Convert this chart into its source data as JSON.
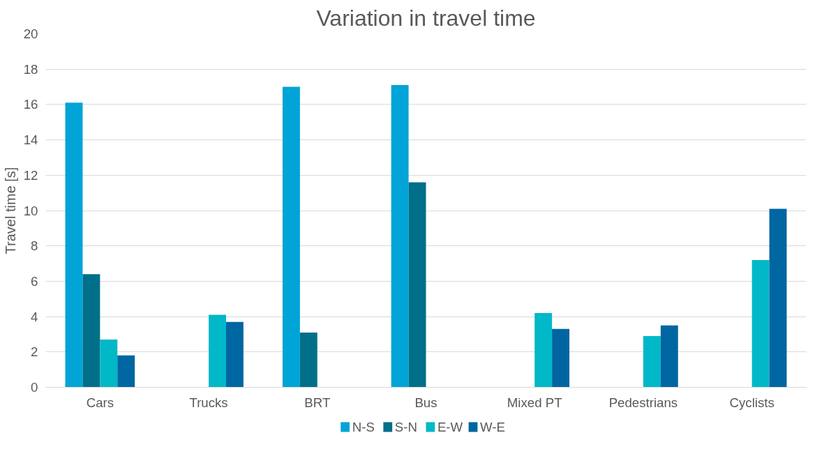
{
  "chart_data": {
    "type": "bar",
    "title": "Variation in travel time",
    "ylabel": "Travel time [s]",
    "categories": [
      "Cars",
      "Trucks",
      "BRT",
      "Bus",
      "Mixed PT",
      "Pedestrians",
      "Cyclists"
    ],
    "series": [
      {
        "name": "N-S",
        "color": "#00a4d6",
        "values": [
          16.1,
          null,
          17.0,
          17.1,
          null,
          null,
          null
        ]
      },
      {
        "name": "S-N",
        "color": "#006f89",
        "values": [
          6.4,
          null,
          3.1,
          11.6,
          null,
          null,
          null
        ]
      },
      {
        "name": "E-W",
        "color": "#00b8c8",
        "values": [
          2.7,
          4.1,
          null,
          null,
          4.2,
          2.9,
          7.2
        ]
      },
      {
        "name": "W-E",
        "color": "#0066a1",
        "values": [
          1.8,
          3.7,
          null,
          null,
          3.3,
          3.5,
          10.1
        ]
      }
    ],
    "ylim": [
      0,
      20
    ],
    "yticks": [
      0,
      2,
      4,
      6,
      8,
      10,
      12,
      14,
      16,
      18,
      20
    ],
    "grid": "y",
    "legend": "bottom"
  }
}
